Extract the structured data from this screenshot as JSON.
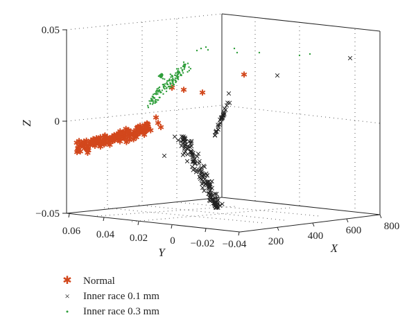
{
  "chart_data": {
    "type": "scatter",
    "title": "",
    "xlabel": "X",
    "ylabel": "Y",
    "zlabel": "Z",
    "xlim": [
      100,
      800
    ],
    "ylim": [
      -0.04,
      0.06
    ],
    "zlim": [
      -0.05,
      0.05
    ],
    "x_ticks": [
      "200",
      "400",
      "600",
      "800"
    ],
    "y_ticks": [
      "0.06",
      "0.04",
      "0.02",
      "0",
      "−0.02",
      "−0.04"
    ],
    "z_ticks": [
      "0.05",
      "0",
      "−0.05"
    ],
    "grid": true,
    "legend_position": "bottom-left",
    "series": [
      {
        "name": "Normal",
        "marker": "asterisk",
        "color": "#d2471c"
      },
      {
        "name": "Inner race 0.1 mm",
        "marker": "x",
        "color": "#222222"
      },
      {
        "name": "Inner race 0.3 mm",
        "marker": "dot",
        "color": "#2e9e3a"
      }
    ]
  }
}
